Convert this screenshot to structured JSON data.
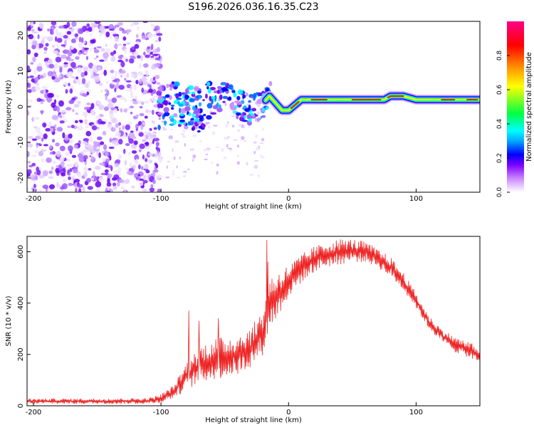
{
  "chart_data": [
    {
      "type": "heatmap",
      "title": "S196.2026.036.16.35.C23",
      "xlabel": "Height of straight line (km)",
      "ylabel": "Frequency (Hz)",
      "xlim": [
        -205,
        150
      ],
      "ylim": [
        -24,
        24
      ],
      "x_ticks": [
        -200,
        -100,
        0,
        100
      ],
      "y_ticks": [
        -20,
        -10,
        0,
        10,
        20
      ],
      "colorbar": {
        "label": "Normalized spectral amplitude",
        "range": [
          0,
          1
        ],
        "ticks": [
          "0.0",
          "0.2",
          "0.4",
          "0.6",
          "0.8"
        ],
        "stops": [
          "#ffffff",
          "#cc88ff",
          "#7a00ff",
          "#0000ff",
          "#00aaff",
          "#00ffff",
          "#00ff44",
          "#ffff00",
          "#ff8800",
          "#ff0000",
          "#ff0088"
        ]
      },
      "ridge": {
        "description": "dominant frequency vs height",
        "x": [
          -100,
          -90,
          -80,
          -70,
          -60,
          -50,
          -40,
          -30,
          -20,
          -15,
          -10,
          -5,
          0,
          10,
          20,
          40,
          60,
          75,
          80,
          85,
          90,
          100,
          110,
          120,
          130,
          140,
          150
        ],
        "freq": [
          0,
          1,
          0,
          -1,
          2,
          3,
          1,
          -1,
          1,
          3,
          1,
          -1,
          -1,
          2,
          2,
          2,
          2,
          2,
          3,
          3,
          3,
          2,
          2,
          2,
          2,
          2,
          2
        ]
      },
      "noise_region": [
        -205,
        -100
      ]
    },
    {
      "type": "line",
      "title": "",
      "xlabel": "Height of straight line (km)",
      "ylabel": "SNR (10 * v/v)",
      "xlim": [
        -205,
        150
      ],
      "ylim": [
        0,
        660
      ],
      "x_ticks": [
        -200,
        -100,
        0,
        100
      ],
      "y_ticks": [
        0,
        200,
        400,
        600
      ],
      "series": [
        {
          "name": "SNR",
          "color": "#ee2222",
          "envelope_x": [
            -205,
            -150,
            -110,
            -100,
            -90,
            -80,
            -70,
            -60,
            -50,
            -40,
            -30,
            -20,
            -15,
            -10,
            -5,
            0,
            10,
            20,
            30,
            40,
            50,
            60,
            70,
            80,
            90,
            100,
            110,
            120,
            130,
            140,
            150
          ],
          "envelope_low": [
            8,
            8,
            8,
            12,
            30,
            60,
            90,
            100,
            110,
            120,
            150,
            200,
            300,
            330,
            380,
            420,
            480,
            520,
            540,
            550,
            560,
            560,
            540,
            500,
            450,
            380,
            300,
            250,
            210,
            190,
            160
          ],
          "envelope_high": [
            28,
            28,
            30,
            45,
            80,
            170,
            230,
            260,
            270,
            280,
            300,
            380,
            500,
            520,
            530,
            550,
            590,
            620,
            640,
            650,
            650,
            640,
            610,
            580,
            520,
            440,
            350,
            300,
            270,
            250,
            230
          ],
          "spikes": [
            [
              -78,
              370
            ],
            [
              -17,
              645
            ],
            [
              -16,
              560
            ],
            [
              -70,
              330
            ],
            [
              -55,
              340
            ]
          ]
        }
      ]
    }
  ]
}
